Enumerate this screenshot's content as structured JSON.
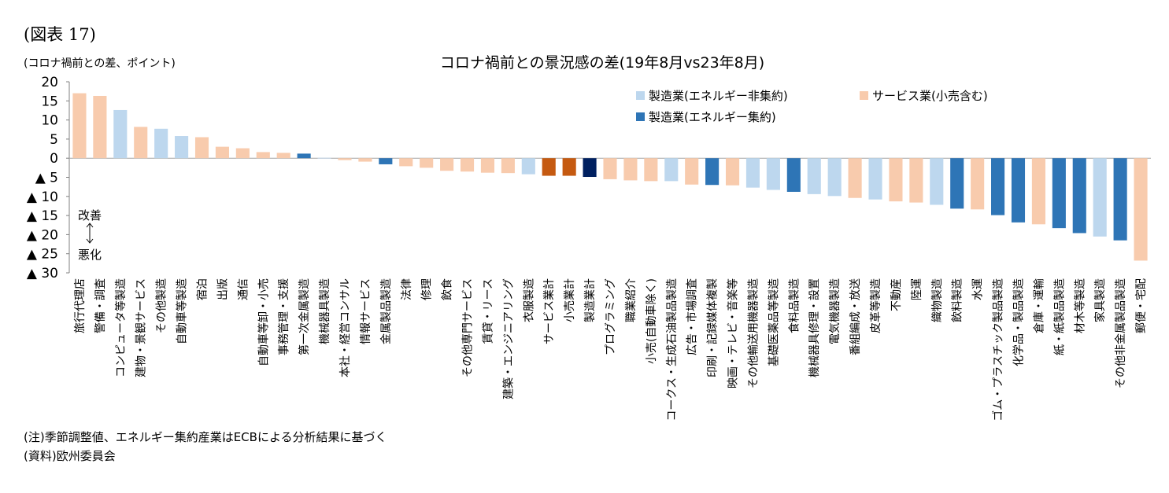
{
  "figure_label": "(図表 17)",
  "notes": [
    "(注)季節調整値、エネルギー集約産業はECBによる分析結果に基づく",
    "(資料)欧州委員会"
  ],
  "colors": {
    "mfg_non_intensive": "#bdd7ee",
    "service": "#f8cbad",
    "mfg_intensive": "#2e75b6",
    "service_total": "#c55a11",
    "retail_total": "#c55a11",
    "manufacturing_total": "#002060"
  },
  "chart_data": {
    "type": "bar",
    "title": "コロナ禍前との景況感の差(19年8月vs23年8月)",
    "ylabel": "(コロナ禍前との差、ポイント)",
    "ylim": [
      -30,
      20
    ],
    "yticks": [
      20,
      15,
      10,
      5,
      0,
      -5,
      -10,
      -15,
      -20,
      -25,
      -30
    ],
    "ytick_labels": [
      "20",
      "15",
      "10",
      "5",
      "0",
      "▲ 5",
      "▲ 10",
      "▲ 15",
      "▲ 20",
      "▲ 25",
      "▲ 30"
    ],
    "grid": false,
    "legend_position": "top-right",
    "legend": [
      {
        "label": "製造業(エネルギー非集約)",
        "group": "mfg_non_intensive"
      },
      {
        "label": "サービス業(小売含む)",
        "group": "service"
      },
      {
        "label": "製造業(エネルギー集約)",
        "group": "mfg_intensive"
      }
    ],
    "annotations": {
      "improve": "改善",
      "worsen": "悪化"
    },
    "categories": [
      "旅行代理店",
      "警備・調査",
      "コンピュータ等製造",
      "建物・景観サービス",
      "その他製造",
      "自動車等製造",
      "宿泊",
      "出版",
      "通信",
      "自動車等卸・小売",
      "事務管理・支援",
      "第一次金属製造",
      "機械器具製造",
      "本社・経営コンサル",
      "情報サービス",
      "金属製品製造",
      "法律",
      "修理",
      "飲食",
      "その他専門サービス",
      "賃貸・リース",
      "建築・エンジニアリング",
      "衣服製造",
      "サービス業計",
      "小売業計",
      "製造業計",
      "プログラミング",
      "職業紹介",
      "小売(自動車除く)",
      "コークス・生成石油製品製造",
      "広告・市場調査",
      "印刷・記録媒体複製",
      "映画・テレビ・音楽等",
      "その他輸送用機器製造",
      "基礎医薬品等製造",
      "食料品製造",
      "機械器具修理・設置",
      "電気機器製造",
      "番組編成・放送",
      "皮革等製造",
      "不動産",
      "陸運",
      "織物製造",
      "飲料製造",
      "水運",
      "ゴム・プラスチック製品製造",
      "化学品・製品製造",
      "倉庫・運輸",
      "紙・紙製品製造",
      "材木等製造",
      "家具製造",
      "その他非金属製品製造",
      "郵便・宅配"
    ],
    "values": [
      17,
      16.3,
      12.6,
      8.2,
      7.7,
      5.8,
      5.5,
      3.0,
      2.6,
      1.6,
      1.4,
      1.2,
      0.1,
      -0.5,
      -0.9,
      -1.6,
      -2.1,
      -2.5,
      -3.3,
      -3.5,
      -3.8,
      -3.9,
      -4.2,
      -4.6,
      -4.6,
      -4.9,
      -5.5,
      -5.8,
      -6.0,
      -6.0,
      -6.9,
      -7.0,
      -7.1,
      -7.7,
      -8.3,
      -8.8,
      -9.4,
      -9.9,
      -10.4,
      -10.8,
      -11.3,
      -11.6,
      -12.2,
      -13.2,
      -13.4,
      -14.9,
      -16.8,
      -17.3,
      -18.3,
      -19.6,
      -20.5,
      -21.5,
      -26.8
    ],
    "groups": [
      "service",
      "service",
      "mfg_non_intensive",
      "service",
      "mfg_non_intensive",
      "mfg_non_intensive",
      "service",
      "service",
      "service",
      "service",
      "service",
      "mfg_intensive",
      "mfg_non_intensive",
      "service",
      "service",
      "mfg_intensive",
      "service",
      "service",
      "service",
      "service",
      "service",
      "service",
      "mfg_non_intensive",
      "service_total",
      "retail_total",
      "manufacturing_total",
      "service",
      "service",
      "service",
      "mfg_non_intensive",
      "service",
      "mfg_intensive",
      "service",
      "mfg_non_intensive",
      "mfg_non_intensive",
      "mfg_intensive",
      "mfg_non_intensive",
      "mfg_non_intensive",
      "service",
      "mfg_non_intensive",
      "service",
      "service",
      "mfg_non_intensive",
      "mfg_intensive",
      "service",
      "mfg_intensive",
      "mfg_intensive",
      "service",
      "mfg_intensive",
      "mfg_intensive",
      "mfg_non_intensive",
      "mfg_intensive",
      "service"
    ]
  }
}
